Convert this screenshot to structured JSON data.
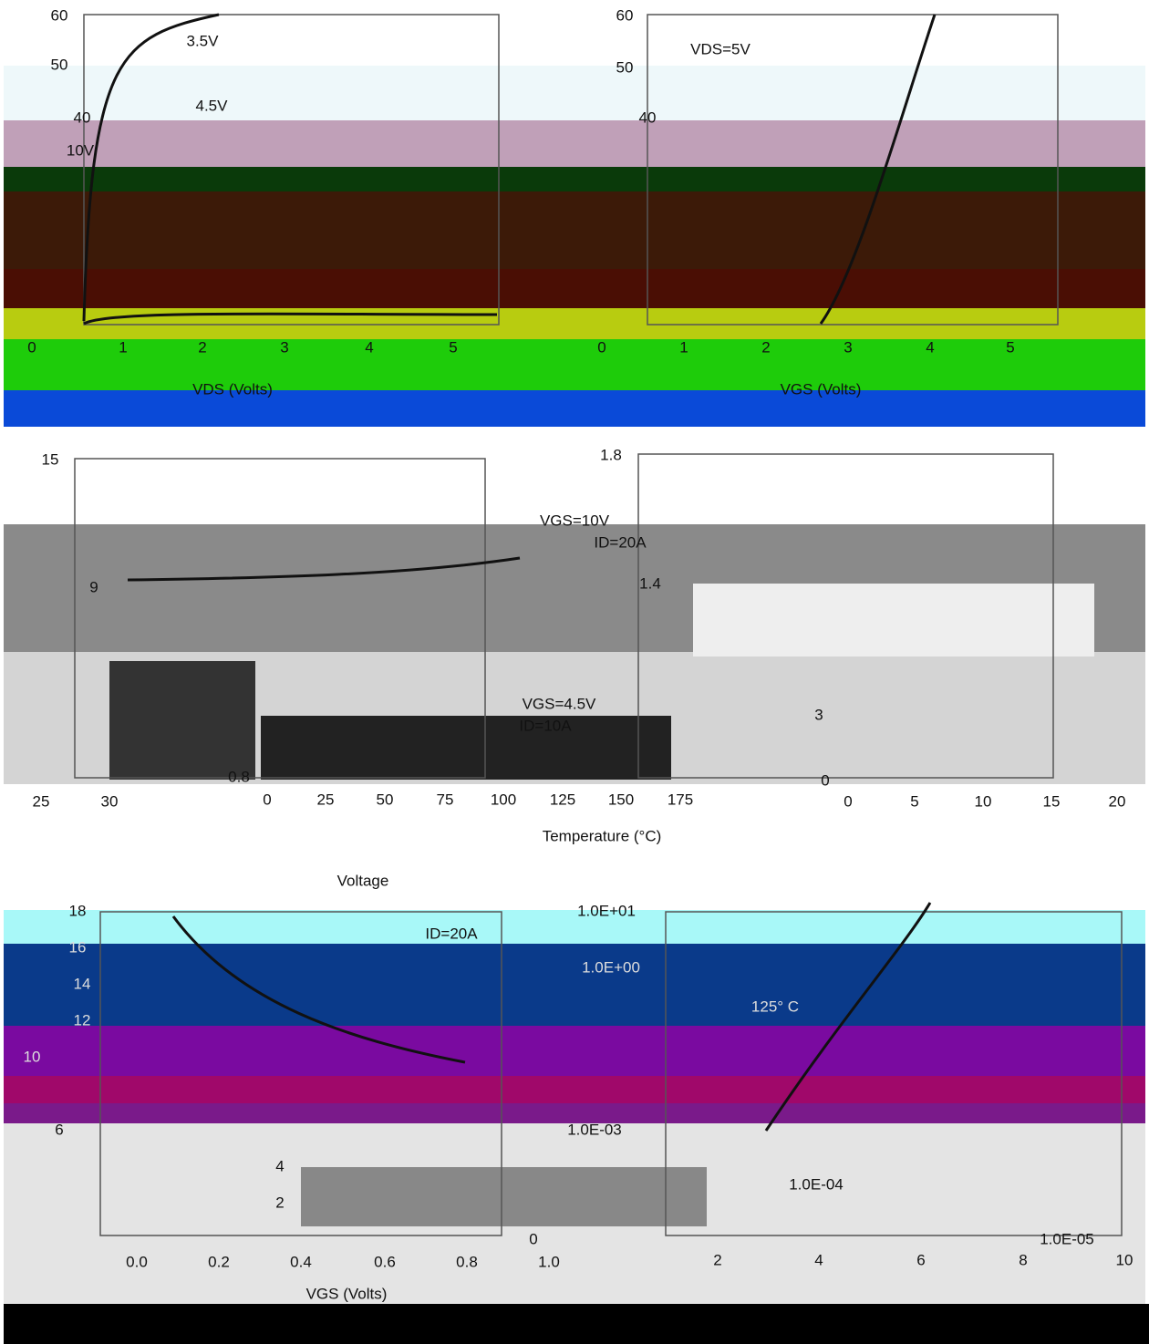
{
  "panels": [
    {
      "texts": [
        "60",
        "50",
        "40",
        "3.5V",
        "4.5V",
        "10V",
        "0",
        "1",
        "2",
        "3",
        "4",
        "5",
        "VDS (Volts)"
      ]
    },
    {
      "texts": [
        "60",
        "50",
        "40",
        "VDS=5V",
        "0",
        "1",
        "2",
        "3",
        "4",
        "5",
        "VGS (Volts)"
      ]
    },
    {
      "texts": [
        "15",
        "9",
        "VGS=10V",
        "ID=20A",
        "VGS=4.5V",
        "ID=10A",
        "1.8",
        "1.4",
        "3",
        "0",
        "0.8",
        "0",
        "25",
        "50",
        "75",
        "100",
        "125",
        "150",
        "175",
        "25",
        "30",
        "0",
        "5",
        "10",
        "15",
        "20",
        "Temperature (°C)",
        "Voltage"
      ]
    },
    {
      "texts": [
        "18",
        "16",
        "14",
        "12",
        "10",
        "6",
        "4",
        "2",
        "0",
        "ID=20A",
        "125° C",
        "1.0E+01",
        "1.0E+00",
        "1.0E-03",
        "1.0E-04",
        "1.0E-05",
        "0.0",
        "0.2",
        "0.4",
        "0.6",
        "0.8",
        "1.0",
        "2",
        "4",
        "6",
        "8",
        "10",
        "VGS (Volts)"
      ]
    }
  ]
}
